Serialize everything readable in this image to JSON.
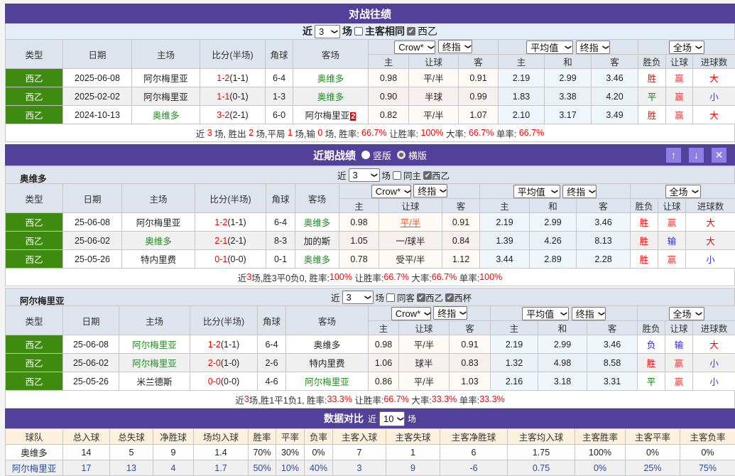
{
  "colors": {
    "purple": "#51419b",
    "type_green": "#3f8a10",
    "win": "#ff0000",
    "draw": "#008000",
    "lose": "#2222ff",
    "hcap_win": "#ff3333",
    "hcap_lose": "#2222ff",
    "big": "#ff0000",
    "small": "#3333ff",
    "team_highlight": "#1e8c1e"
  },
  "columns": [
    "类型",
    "日期",
    "主场",
    "比分(半场)",
    "角球",
    "客场"
  ],
  "sub_columns": [
    "主",
    "让球",
    "客",
    "主",
    "和",
    "客",
    "胜负",
    "让球",
    "进球数"
  ],
  "selects": {
    "company": "Crow*",
    "kind1": "终指",
    "avg": "平均值",
    "kind2": "终指",
    "period": "全场"
  },
  "h2h": {
    "title": "对战往绩",
    "filter": {
      "prefix": "近",
      "count": "3",
      "suffix": "场",
      "same_label": "主客相同",
      "league_label": "西乙"
    },
    "rows": [
      {
        "type": "西乙",
        "date": "2025-06-08",
        "home": "阿尔梅里亚",
        "away": "奥维多",
        "hl": "away",
        "score": "1-2",
        "half": "(1-1)",
        "corner": "6-4",
        "odds": [
          "0.98",
          "平/半",
          "0.91"
        ],
        "avg": [
          "2.19",
          "2.99",
          "3.46"
        ],
        "result": "胜",
        "hcap": "赢",
        "goals": "大"
      },
      {
        "type": "西乙",
        "date": "2025-02-02",
        "home": "阿尔梅里亚",
        "away": "奥维多",
        "hl": "away",
        "score": "1-1",
        "half": "(0-1)",
        "corner": "1-3",
        "odds": [
          "0.90",
          "半球",
          "0.99"
        ],
        "avg": [
          "1.83",
          "3.38",
          "4.20"
        ],
        "result": "平",
        "hcap": "赢",
        "goals": "小"
      },
      {
        "type": "西乙",
        "date": "2024-10-13",
        "home": "奥维多",
        "away": "阿尔梅里亚",
        "away_red": "2",
        "hl": "home",
        "score": "3-2",
        "half": "(2-1)",
        "corner": "6-0",
        "odds": [
          "0.82",
          "平/半",
          "1.07"
        ],
        "avg": [
          "2.10",
          "3.17",
          "3.49"
        ],
        "result": "胜",
        "hcap": "赢",
        "goals": "大"
      }
    ],
    "summary": [
      {
        "t": "近 "
      },
      {
        "t": "3",
        "r": 1
      },
      {
        "t": " 场, 胜出 "
      },
      {
        "t": "2",
        "r": 1
      },
      {
        "t": " 场,平局 "
      },
      {
        "t": "1",
        "r": 1
      },
      {
        "t": " 场,输 "
      },
      {
        "t": "0",
        "r": 1
      },
      {
        "t": " 场, 胜率: "
      },
      {
        "t": "66.7%",
        "r": 1
      },
      {
        "t": " 让胜率: "
      },
      {
        "t": "100%",
        "r": 1
      },
      {
        "t": " 大率: "
      },
      {
        "t": "66.7%",
        "r": 1
      },
      {
        "t": " 单率: "
      },
      {
        "t": "66.7%",
        "r": 1
      }
    ]
  },
  "recent": {
    "title": "近期战绩",
    "layout_options": [
      "竖版",
      "横版"
    ],
    "buttons": {
      "up": "↑",
      "down": "↓",
      "close": "✕"
    },
    "home": {
      "team": "奥维多",
      "filter": {
        "prefix": "近",
        "count": "3",
        "suffix": "场",
        "same_label": "同主",
        "leagues": [
          "西乙"
        ]
      },
      "rows": [
        {
          "type": "西乙",
          "date": "25-06-08",
          "home": "阿尔梅里亚",
          "away": "奥维多",
          "hl": "away",
          "score": "1-2",
          "half": "(1-1)",
          "corner": "6-4",
          "odds": [
            "0.98",
            "平/半",
            "0.91"
          ],
          "hcap_link": true,
          "avg": [
            "2.19",
            "2.99",
            "3.46"
          ],
          "result": "胜",
          "hcap": "赢",
          "goals": "大"
        },
        {
          "type": "西乙",
          "date": "25-06-02",
          "home": "奥维多",
          "away": "加的斯",
          "hl": "home",
          "score": "2-1",
          "half": "(2-1)",
          "corner": "8-3",
          "odds": [
            "1.05",
            "一/球半",
            "0.84"
          ],
          "avg": [
            "1.39",
            "4.26",
            "8.13"
          ],
          "result": "胜",
          "hcap": "输",
          "goals": "大"
        },
        {
          "type": "西乙",
          "date": "25-05-26",
          "home": "特内里费",
          "away": "奥维多",
          "hl": "away",
          "score": "0-1",
          "half": "(0-0)",
          "corner": "0-1",
          "odds": [
            "0.78",
            "受平/半",
            "1.12"
          ],
          "avg": [
            "3.44",
            "2.89",
            "2.28"
          ],
          "result": "胜",
          "hcap": "赢",
          "goals": "小"
        }
      ],
      "summary": [
        {
          "t": "近"
        },
        {
          "t": "3",
          "r": 1
        },
        {
          "t": "场,胜3平0负0, 胜率:"
        },
        {
          "t": "100%",
          "r": 1
        },
        {
          "t": " 让胜率:"
        },
        {
          "t": "66.7%",
          "r": 1
        },
        {
          "t": " 大率:"
        },
        {
          "t": "66.7%",
          "r": 1
        },
        {
          "t": " 单率:"
        },
        {
          "t": "100%",
          "r": 1
        }
      ]
    },
    "away": {
      "team": "阿尔梅里亚",
      "filter": {
        "prefix": "近",
        "count": "3",
        "suffix": "场",
        "same_label": "同客",
        "leagues": [
          "西乙",
          "西杯"
        ]
      },
      "rows": [
        {
          "type": "西乙",
          "date": "25-06-08",
          "home": "阿尔梅里亚",
          "away": "奥维多",
          "hl": "home",
          "score": "1-2",
          "half": "(1-1)",
          "corner": "6-4",
          "odds": [
            "0.98",
            "平/半",
            "0.91"
          ],
          "avg": [
            "2.19",
            "2.99",
            "3.46"
          ],
          "result": "负",
          "hcap": "输",
          "goals": "大"
        },
        {
          "type": "西乙",
          "date": "25-06-02",
          "home": "阿尔梅里亚",
          "away": "特内里费",
          "hl": "home",
          "score": "2-0",
          "half": "(1-0)",
          "corner": "2-6",
          "odds": [
            "1.06",
            "球半",
            "0.83"
          ],
          "avg": [
            "1.32",
            "4.98",
            "8.58"
          ],
          "result": "胜",
          "hcap": "赢",
          "goals": "小"
        },
        {
          "type": "西乙",
          "date": "25-05-26",
          "home": "米兰德斯",
          "away": "阿尔梅里亚",
          "hl": "away",
          "score": "0-0",
          "half": "(0-0)",
          "corner": "4-6",
          "odds": [
            "0.86",
            "平/半",
            "1.03"
          ],
          "avg": [
            "2.16",
            "3.18",
            "3.31"
          ],
          "result": "平",
          "hcap": "赢",
          "goals": "小"
        }
      ],
      "summary": [
        {
          "t": "近"
        },
        {
          "t": "3",
          "r": 1
        },
        {
          "t": "场,胜1平1负1, 胜率:"
        },
        {
          "t": "33.3%",
          "r": 1
        },
        {
          "t": " 让胜率:"
        },
        {
          "t": "66.7%",
          "r": 1
        },
        {
          "t": " 大率:"
        },
        {
          "t": "33.3%",
          "r": 1
        },
        {
          "t": " 单率:"
        },
        {
          "t": "33.3%",
          "r": 1
        }
      ]
    }
  },
  "stats": {
    "title": "数据对比",
    "prefix": "近",
    "count": "10",
    "suffix": "场",
    "headers": [
      "球队",
      "总入球",
      "总失球",
      "净胜球",
      "场均入球",
      "胜率",
      "平率",
      "负率",
      "主客入球",
      "主客失球",
      "主客净胜球",
      "主客均入球",
      "主客胜率",
      "主客平率",
      "主客负率"
    ],
    "rows": [
      [
        "奥维多",
        "14",
        "5",
        "9",
        "1.4",
        "70%",
        "30%",
        "0%",
        "7",
        "1",
        "6",
        "1.75",
        "100%",
        "0%",
        "0%"
      ],
      [
        "阿尔梅里亚",
        "17",
        "13",
        "4",
        "1.7",
        "50%",
        "10%",
        "40%",
        "3",
        "9",
        "-6",
        "0.75",
        "0%",
        "25%",
        "75%"
      ]
    ]
  }
}
